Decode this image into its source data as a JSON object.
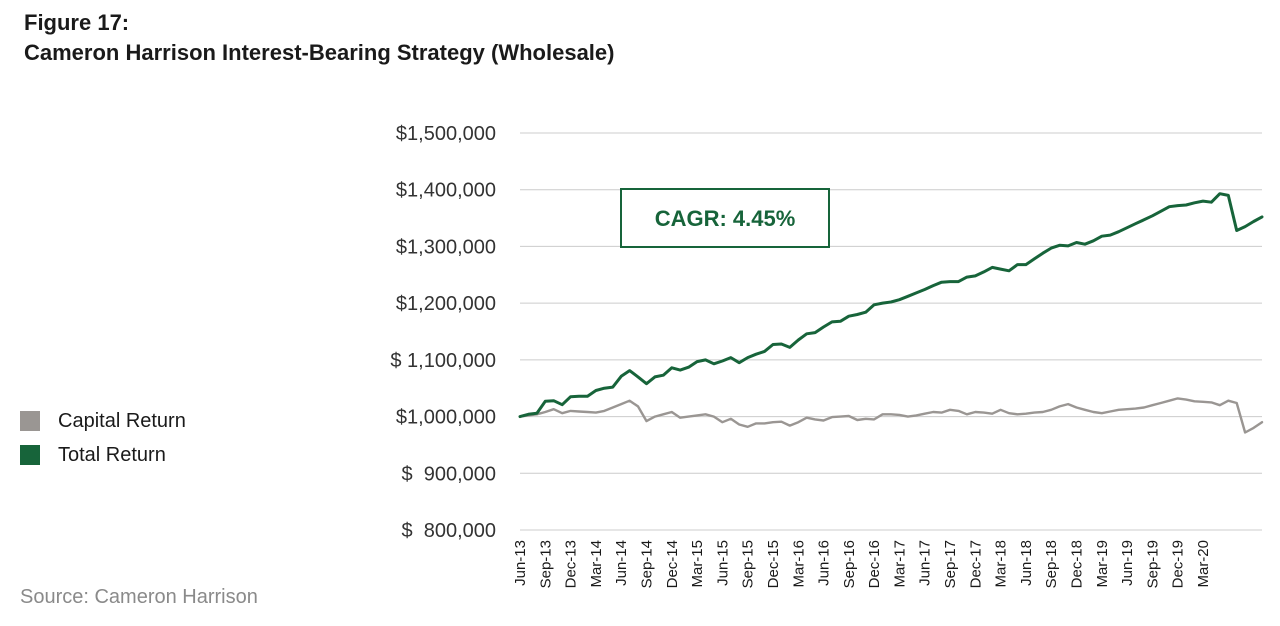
{
  "header": {
    "figure_label": "Figure 17:",
    "title": "Cameron Harrison Interest-Bearing Strategy (Wholesale)"
  },
  "source": "Source: Cameron Harrison",
  "chart_data": {
    "type": "line",
    "title": "Cameron Harrison Interest-Bearing Strategy (Wholesale)",
    "xlabel": "",
    "ylabel": "",
    "ylim": [
      800000,
      1500000
    ],
    "y_ticks": [
      {
        "value": 1500000,
        "label": "$1,500,000"
      },
      {
        "value": 1400000,
        "label": "$1,400,000"
      },
      {
        "value": 1300000,
        "label": "$1,300,000"
      },
      {
        "value": 1200000,
        "label": "$1,200,000"
      },
      {
        "value": 1100000,
        "label": "$ 1,100,000"
      },
      {
        "value": 1000000,
        "label": "$1,000,000"
      },
      {
        "value": 900000,
        "label": "$  900,000"
      },
      {
        "value": 800000,
        "label": "$  800,000"
      }
    ],
    "x_tick_labels": [
      "Jun-13",
      "Sep-13",
      "Dec-13",
      "Mar-14",
      "Jun-14",
      "Sep-14",
      "Dec-14",
      "Mar-15",
      "Jun-15",
      "Sep-15",
      "Dec-15",
      "Mar-16",
      "Jun-16",
      "Sep-16",
      "Dec-16",
      "Mar-17",
      "Jun-17",
      "Sep-17",
      "Dec-17",
      "Mar-18",
      "Jun-18",
      "Sep-18",
      "Dec-18",
      "Mar-19",
      "Jun-19",
      "Sep-19",
      "Dec-19",
      "Mar-20"
    ],
    "x_start": "Jun-13",
    "x_end": "Jun-20",
    "grid": "horizontal",
    "legend_position": "left",
    "annotation": "CAGR: 4.45%",
    "colors": {
      "capital": "#9a9693",
      "total": "#17643a",
      "grid": "#cccccc"
    },
    "series": [
      {
        "name": "Capital Return",
        "color": "#9a9693",
        "values": [
          1000000,
          1002000,
          1004000,
          1008000,
          1013000,
          1006000,
          1010000,
          1009000,
          1008000,
          1007000,
          1010000,
          1016000,
          1022000,
          1028000,
          1018000,
          992000,
          1000000,
          1004000,
          1008000,
          998000,
          1000000,
          1002000,
          1004000,
          1000000,
          990000,
          996000,
          986000,
          982000,
          988000,
          988000,
          990000,
          991000,
          984000,
          990000,
          998000,
          995000,
          993000,
          999000,
          1000000,
          1001000,
          994000,
          996000,
          995000,
          1004000,
          1004000,
          1003000,
          1000000,
          1002000,
          1005000,
          1008000,
          1007000,
          1012000,
          1010000,
          1004000,
          1008000,
          1007000,
          1005000,
          1012000,
          1006000,
          1004000,
          1005000,
          1007000,
          1008000,
          1012000,
          1018000,
          1022000,
          1016000,
          1012000,
          1008000,
          1006000,
          1009000,
          1012000,
          1013000,
          1014000,
          1016000,
          1020000,
          1024000,
          1028000,
          1032000,
          1030000,
          1027000,
          1026000,
          1025000,
          1020000,
          1028000,
          1024000,
          972000,
          980000,
          990000
        ]
      },
      {
        "name": "Total Return",
        "color": "#17643a",
        "values": [
          1000000,
          1004000,
          1006000,
          1027000,
          1028000,
          1021000,
          1035000,
          1036000,
          1036000,
          1046000,
          1050000,
          1052000,
          1071000,
          1081000,
          1070000,
          1058000,
          1070000,
          1073000,
          1086000,
          1082000,
          1087000,
          1097000,
          1100000,
          1093000,
          1098000,
          1104000,
          1095000,
          1104000,
          1110000,
          1115000,
          1127000,
          1128000,
          1122000,
          1135000,
          1146000,
          1148000,
          1158000,
          1167000,
          1168000,
          1177000,
          1180000,
          1184000,
          1197000,
          1200000,
          1202000,
          1206000,
          1212000,
          1218000,
          1224000,
          1231000,
          1237000,
          1238000,
          1238000,
          1246000,
          1248000,
          1255000,
          1263000,
          1260000,
          1257000,
          1268000,
          1268000,
          1278000,
          1288000,
          1297000,
          1302000,
          1301000,
          1307000,
          1304000,
          1310000,
          1318000,
          1320000,
          1326000,
          1333000,
          1340000,
          1347000,
          1354000,
          1362000,
          1370000,
          1372000,
          1373000,
          1377000,
          1380000,
          1378000,
          1393000,
          1390000,
          1328000,
          1335000,
          1344000,
          1352000
        ]
      }
    ]
  }
}
